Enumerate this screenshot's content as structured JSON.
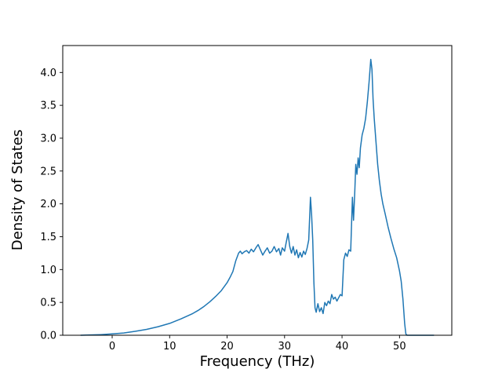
{
  "chart_data": {
    "type": "line",
    "title": "",
    "xlabel": "Frequency (THz)",
    "ylabel": "Density of States",
    "xlim": [
      -8.6,
      59.1
    ],
    "ylim": [
      0,
      4.41
    ],
    "grid": false,
    "legend": "none",
    "line_color": "#1f77b4",
    "xticks": [
      0,
      10,
      20,
      30,
      40,
      50
    ],
    "xtick_labels": [
      "0",
      "10",
      "20",
      "30",
      "40",
      "50"
    ],
    "yticks": [
      0.0,
      0.5,
      1.0,
      1.5,
      2.0,
      2.5,
      3.0,
      3.5,
      4.0
    ],
    "ytick_labels": [
      "0.0",
      "0.5",
      "1.0",
      "1.5",
      "2.0",
      "2.5",
      "3.0",
      "3.5",
      "4.0"
    ],
    "x": [
      -5.5,
      -4,
      -2,
      0,
      2,
      4,
      6,
      8,
      10,
      12,
      14,
      15,
      16,
      17,
      18,
      19,
      20,
      20.5,
      21,
      21.5,
      22,
      22.3,
      22.6,
      23,
      23.4,
      23.8,
      24.2,
      24.6,
      25,
      25.4,
      25.8,
      26.2,
      26.6,
      27,
      27.4,
      27.8,
      28.2,
      28.6,
      29,
      29.3,
      29.6,
      30,
      30.3,
      30.6,
      30.9,
      31.2,
      31.5,
      31.8,
      32.1,
      32.4,
      32.7,
      33,
      33.3,
      33.6,
      33.9,
      34.2,
      34.5,
      34.7,
      34.9,
      35.1,
      35.3,
      35.5,
      35.8,
      36.1,
      36.4,
      36.7,
      37,
      37.3,
      37.6,
      37.9,
      38.2,
      38.5,
      38.8,
      39.1,
      39.4,
      39.7,
      40,
      40.3,
      40.6,
      40.9,
      41.2,
      41.5,
      41.8,
      42,
      42.2,
      42.4,
      42.6,
      42.8,
      43,
      43.2,
      43.5,
      43.8,
      44.1,
      44.4,
      44.7,
      45,
      45.2,
      45.4,
      45.6,
      45.9,
      46.2,
      46.5,
      46.8,
      47.1,
      47.5,
      48,
      48.5,
      49,
      49.5,
      50,
      50.3,
      50.6,
      50.9,
      51.1,
      51.3,
      52,
      54,
      56
    ],
    "y": [
      0,
      0.005,
      0.01,
      0.02,
      0.035,
      0.06,
      0.09,
      0.13,
      0.18,
      0.25,
      0.33,
      0.38,
      0.44,
      0.51,
      0.59,
      0.68,
      0.8,
      0.88,
      0.97,
      1.13,
      1.25,
      1.28,
      1.24,
      1.27,
      1.29,
      1.25,
      1.31,
      1.27,
      1.33,
      1.38,
      1.3,
      1.22,
      1.28,
      1.33,
      1.25,
      1.28,
      1.35,
      1.27,
      1.32,
      1.22,
      1.33,
      1.28,
      1.42,
      1.55,
      1.35,
      1.25,
      1.35,
      1.22,
      1.3,
      1.18,
      1.26,
      1.19,
      1.28,
      1.23,
      1.32,
      1.45,
      2.1,
      1.85,
      1.45,
      0.8,
      0.42,
      0.35,
      0.48,
      0.36,
      0.42,
      0.33,
      0.5,
      0.45,
      0.52,
      0.48,
      0.62,
      0.55,
      0.58,
      0.52,
      0.57,
      0.62,
      0.6,
      1.15,
      1.25,
      1.2,
      1.3,
      1.28,
      2.1,
      1.75,
      2.15,
      2.6,
      2.45,
      2.7,
      2.55,
      2.85,
      3.05,
      3.15,
      3.3,
      3.55,
      3.85,
      4.2,
      4.05,
      3.6,
      3.3,
      2.95,
      2.6,
      2.35,
      2.15,
      2.0,
      1.85,
      1.65,
      1.48,
      1.32,
      1.18,
      0.98,
      0.82,
      0.55,
      0.18,
      0.02,
      0,
      0,
      0,
      0
    ]
  }
}
